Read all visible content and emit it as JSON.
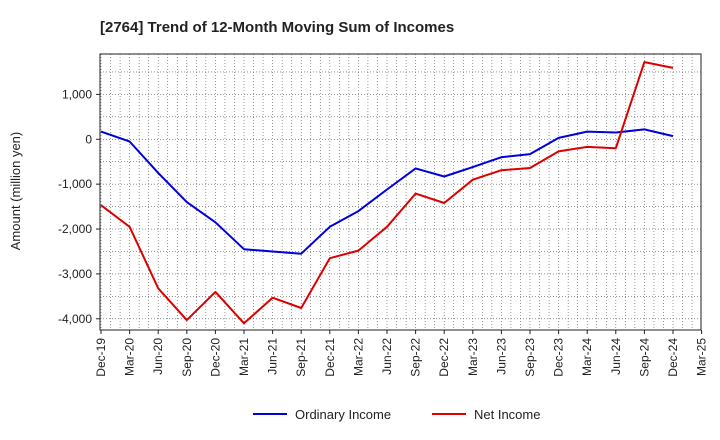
{
  "chart_data": {
    "type": "line",
    "title": "[2764]  Trend of 12-Month Moving Sum of Incomes",
    "xlabel": "",
    "ylabel": "Amount (million yen)",
    "categories": [
      "Dec-19",
      "Mar-20",
      "Jun-20",
      "Sep-20",
      "Dec-20",
      "Mar-21",
      "Jun-21",
      "Sep-21",
      "Dec-21",
      "Mar-22",
      "Jun-22",
      "Sep-22",
      "Dec-22",
      "Mar-23",
      "Jun-23",
      "Sep-23",
      "Dec-23",
      "Mar-24",
      "Jun-24",
      "Sep-24",
      "Dec-24",
      "Mar-25"
    ],
    "y_ticks": [
      1000,
      0,
      -1000,
      -2000,
      -3000,
      -4000
    ],
    "y_tick_labels": [
      "1,000",
      "0",
      "-1,000",
      "-2,000",
      "-3,000",
      "-4,000"
    ],
    "ylim": [
      -4250,
      1900
    ],
    "grid": true,
    "legend_position": "bottom",
    "series": [
      {
        "name": "Ordinary Income",
        "color": "#0000dd",
        "values": [
          170,
          -50,
          -750,
          -1400,
          -1850,
          -2450,
          -2500,
          -2550,
          -1950,
          -1600,
          -1120,
          -650,
          -830,
          -620,
          -400,
          -330,
          30,
          170,
          150,
          220,
          70,
          null
        ]
      },
      {
        "name": "Net Income",
        "color": "#dd0000",
        "values": [
          -1470,
          -1950,
          -3320,
          -4030,
          -3400,
          -4100,
          -3530,
          -3760,
          -2650,
          -2480,
          -1950,
          -1210,
          -1420,
          -900,
          -690,
          -640,
          -270,
          -170,
          -200,
          1720,
          1590,
          null
        ]
      }
    ]
  }
}
